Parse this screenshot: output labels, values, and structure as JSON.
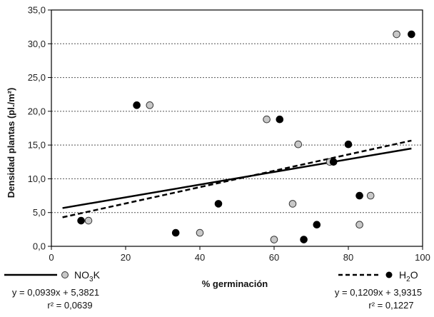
{
  "chart_data": {
    "type": "scatter",
    "xlabel": "% germinación",
    "ylabel": "Densidad plantas (pl./m²)",
    "xlim": [
      0,
      100
    ],
    "ylim": [
      0,
      35
    ],
    "x_ticks": [
      "0",
      "20",
      "40",
      "60",
      "80",
      "100"
    ],
    "y_ticks": [
      "0,0",
      "5,0",
      "10,0",
      "15,0",
      "20,0",
      "25,0",
      "30,0",
      "35,0"
    ],
    "grid": "horizontal dotted",
    "series": [
      {
        "name": "NO3K",
        "name_main": "NO",
        "name_sub": "3",
        "name_tail": "K",
        "marker_color": "#c8c8c8",
        "line_style": "solid",
        "equation": "y = 0,0939x + 5,3821",
        "r2": "r² = 0,0639",
        "slope": 0.0939,
        "intercept": 5.3821,
        "points": [
          {
            "x": 10,
            "y": 3.8
          },
          {
            "x": 26.5,
            "y": 20.9
          },
          {
            "x": 40,
            "y": 2.0
          },
          {
            "x": 58,
            "y": 18.8
          },
          {
            "x": 60,
            "y": 1.0
          },
          {
            "x": 65,
            "y": 6.3
          },
          {
            "x": 66.5,
            "y": 15.1
          },
          {
            "x": 75,
            "y": 12.5
          },
          {
            "x": 83,
            "y": 3.2
          },
          {
            "x": 86,
            "y": 7.5
          },
          {
            "x": 93,
            "y": 31.4
          }
        ]
      },
      {
        "name": "H2O",
        "name_main": "H",
        "name_sub": "2",
        "name_tail": "O",
        "marker_color": "#000000",
        "line_style": "dashed",
        "equation": "y = 0,1209x + 3,9315",
        "r2": "r² = 0,1227",
        "slope": 0.1209,
        "intercept": 3.9315,
        "points": [
          {
            "x": 8,
            "y": 3.8
          },
          {
            "x": 23,
            "y": 20.9
          },
          {
            "x": 33.5,
            "y": 2.0
          },
          {
            "x": 45,
            "y": 6.3
          },
          {
            "x": 61.5,
            "y": 18.8
          },
          {
            "x": 68,
            "y": 1.0
          },
          {
            "x": 71.5,
            "y": 3.2
          },
          {
            "x": 76,
            "y": 12.5
          },
          {
            "x": 80,
            "y": 15.1
          },
          {
            "x": 83,
            "y": 7.5
          },
          {
            "x": 97,
            "y": 31.4
          }
        ]
      }
    ]
  }
}
